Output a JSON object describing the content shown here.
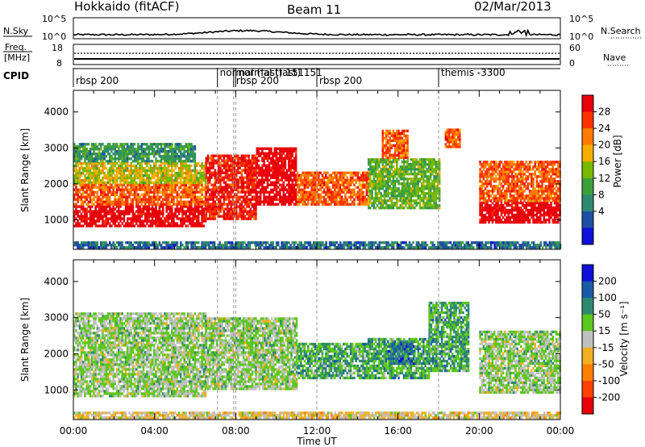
{
  "header": {
    "station": "Hokkaido (fitACF)",
    "beam": "Beam 11",
    "date": "02/Mar/2013"
  },
  "top_panels": {
    "nsky_label": "N.Sky",
    "nsky_ticks": [
      "10^5",
      "10^0"
    ],
    "nsearch_label": "N.Search",
    "nsearch_ticks": [
      "10^5",
      "10^0"
    ],
    "freq_label_1": "Freq.",
    "freq_label_2": "[MHz]",
    "freq_ticks": [
      "18",
      "8"
    ],
    "nave_label": "Nave",
    "nave_ticks": [
      "60",
      "0"
    ],
    "cpid_label": "CPID",
    "cpid_segments": [
      {
        "text": "rbsp 200",
        "start_hour": 0.0
      },
      {
        "text": "normal (fast) 151",
        "start_hour": 7.1
      },
      {
        "text": "rbsp 200",
        "start_hour": 7.9
      },
      {
        "text": "normal (fast) 151",
        "start_hour": 8.0
      },
      {
        "text": "rbsp 200",
        "start_hour": 12.0
      },
      {
        "text": "themis -3300",
        "start_hour": 18.0
      }
    ]
  },
  "power_colorbar": {
    "label": "Power [dB]",
    "ticks": [
      "28",
      "24",
      "20",
      "16",
      "12",
      "8",
      "4"
    ],
    "colors": [
      "#e8000a",
      "#ff3300",
      "#ff7a00",
      "#f7ad00",
      "#7ab800",
      "#3aa03a",
      "#2e8a6e",
      "#1f4fa0",
      "#1010d8"
    ]
  },
  "velocity_colorbar": {
    "label": "Velocity [m s⁻¹]",
    "ticks": [
      "200",
      "100",
      "50",
      "15",
      "-15",
      "-50",
      "-100",
      "-200"
    ],
    "colors": [
      "#1010d8",
      "#1a5aa8",
      "#2e8a6e",
      "#5cc71c",
      "#c0c0c0",
      "#f0b020",
      "#ff8000",
      "#ff4000",
      "#e8000a"
    ]
  },
  "chart_data": [
    {
      "type": "heatmap",
      "panel": "power",
      "xlabel": "",
      "ylabel": "Slant Range [km]",
      "x_ticks": [
        "00:00",
        "04:00",
        "08:00",
        "12:00",
        "16:00",
        "20:00",
        "00:00"
      ],
      "y_ticks": [
        "1000",
        "2000",
        "3000",
        "4000"
      ],
      "xlim_hours": [
        0,
        24
      ],
      "ylim_km": [
        180,
        4600
      ],
      "bands": [
        {
          "start_h": 0.0,
          "end_h": 6.5,
          "low_km": 800,
          "high_km": 1400,
          "level": 0
        },
        {
          "start_h": 0.0,
          "end_h": 6.5,
          "low_km": 1400,
          "high_km": 2000,
          "level": 2
        },
        {
          "start_h": 0.0,
          "end_h": 6.5,
          "low_km": 2000,
          "high_km": 2600,
          "level": 4
        },
        {
          "start_h": 0.0,
          "end_h": 6.0,
          "low_km": 2600,
          "high_km": 3100,
          "level": 6
        },
        {
          "start_h": 6.5,
          "end_h": 9.0,
          "low_km": 1000,
          "high_km": 2800,
          "level": 1
        },
        {
          "start_h": 9.0,
          "end_h": 11.0,
          "low_km": 1400,
          "high_km": 3000,
          "level": 0
        },
        {
          "start_h": 11.0,
          "end_h": 14.5,
          "low_km": 1400,
          "high_km": 2300,
          "level": 2
        },
        {
          "start_h": 14.5,
          "end_h": 18.0,
          "low_km": 1300,
          "high_km": 2700,
          "level": 5
        },
        {
          "start_h": 15.2,
          "end_h": 16.5,
          "low_km": 2700,
          "high_km": 3500,
          "level": 2
        },
        {
          "start_h": 18.3,
          "end_h": 19.0,
          "low_km": 3000,
          "high_km": 3500,
          "level": 2
        },
        {
          "start_h": 20.0,
          "end_h": 24.0,
          "low_km": 900,
          "high_km": 1500,
          "level": 0
        },
        {
          "start_h": 20.0,
          "end_h": 24.0,
          "low_km": 1500,
          "high_km": 2600,
          "level": 2
        },
        {
          "start_h": 0.0,
          "end_h": 24.0,
          "low_km": 200,
          "high_km": 400,
          "level": 7
        }
      ]
    },
    {
      "type": "heatmap",
      "panel": "velocity",
      "xlabel": "Time UT",
      "ylabel": "Slant Range [km]",
      "x_ticks": [
        "00:00",
        "04:00",
        "08:00",
        "12:00",
        "16:00",
        "20:00",
        "00:00"
      ],
      "y_ticks": [
        "1000",
        "2000",
        "3000",
        "4000"
      ],
      "xlim_hours": [
        0,
        24
      ],
      "ylim_km": [
        180,
        4600
      ],
      "bands": [
        {
          "start_h": 0.0,
          "end_h": 6.5,
          "low_km": 800,
          "high_km": 3100,
          "level": 4
        },
        {
          "start_h": 6.5,
          "end_h": 11.0,
          "low_km": 1000,
          "high_km": 3000,
          "level": 4
        },
        {
          "start_h": 11.0,
          "end_h": 14.5,
          "low_km": 1300,
          "high_km": 2300,
          "level": 3
        },
        {
          "start_h": 14.5,
          "end_h": 17.5,
          "low_km": 1300,
          "high_km": 2400,
          "level": 3
        },
        {
          "start_h": 15.5,
          "end_h": 16.8,
          "low_km": 1700,
          "high_km": 2300,
          "level": 2
        },
        {
          "start_h": 17.5,
          "end_h": 19.5,
          "low_km": 1500,
          "high_km": 3400,
          "level": 3
        },
        {
          "start_h": 20.0,
          "end_h": 24.0,
          "low_km": 900,
          "high_km": 2600,
          "level": 4
        },
        {
          "start_h": 0.0,
          "end_h": 24.0,
          "low_km": 200,
          "high_km": 400,
          "level": 5
        }
      ]
    }
  ]
}
